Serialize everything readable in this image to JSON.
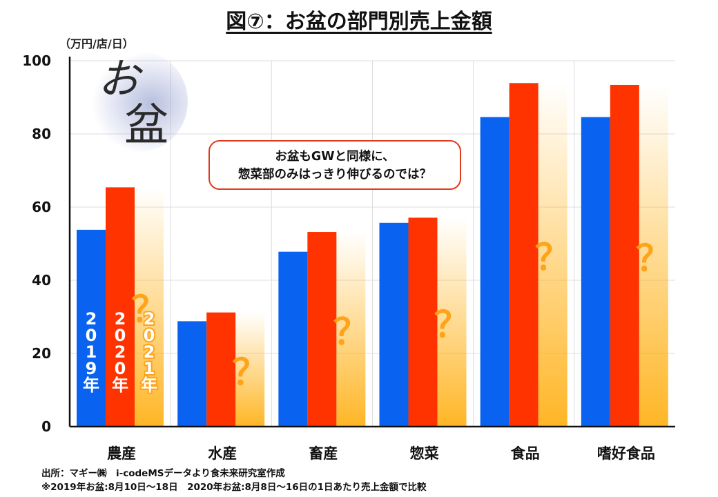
{
  "title": "図⑦：お盆の部門別売上金額",
  "unit": "（万円/店/日）",
  "logo_text": {
    "o": "お",
    "bon": "盆"
  },
  "callout": {
    "line1": "お盆もGWと同様に、",
    "line2": "惣菜部のみはっきり伸びるのでは？"
  },
  "source": {
    "line1": "出所：マギー㈱　i-codeMSデータより食未来研究室作成",
    "line2": "※2019年お盆:8月10日～18日　2020年お盆:8月8日～16日の1日あたり売上金額で比較"
  },
  "colors": {
    "y2019": "#0a63f0",
    "y2020": "#ff3300",
    "y2021": "#ffb21a",
    "q": "#ffa31a"
  },
  "chart_data": {
    "type": "bar",
    "categories": [
      "農産",
      "水産",
      "畜産",
      "惣菜",
      "食品",
      "嗜好食品"
    ],
    "series": [
      {
        "name": "2019年",
        "values": [
          53.8,
          28.8,
          47.8,
          55.7,
          84.6,
          84.6
        ]
      },
      {
        "name": "2020年",
        "values": [
          65.4,
          31.2,
          53.2,
          57.1,
          93.9,
          93.4
        ]
      },
      {
        "name": "2021年",
        "values": [
          null,
          null,
          null,
          null,
          null,
          null
        ]
      }
    ],
    "ylim": [
      0,
      100
    ],
    "yticks": [
      0,
      20,
      40,
      60,
      80,
      100
    ],
    "placeholder_label": "？",
    "grid": true,
    "legend": "vertical labels inside first category bars"
  }
}
